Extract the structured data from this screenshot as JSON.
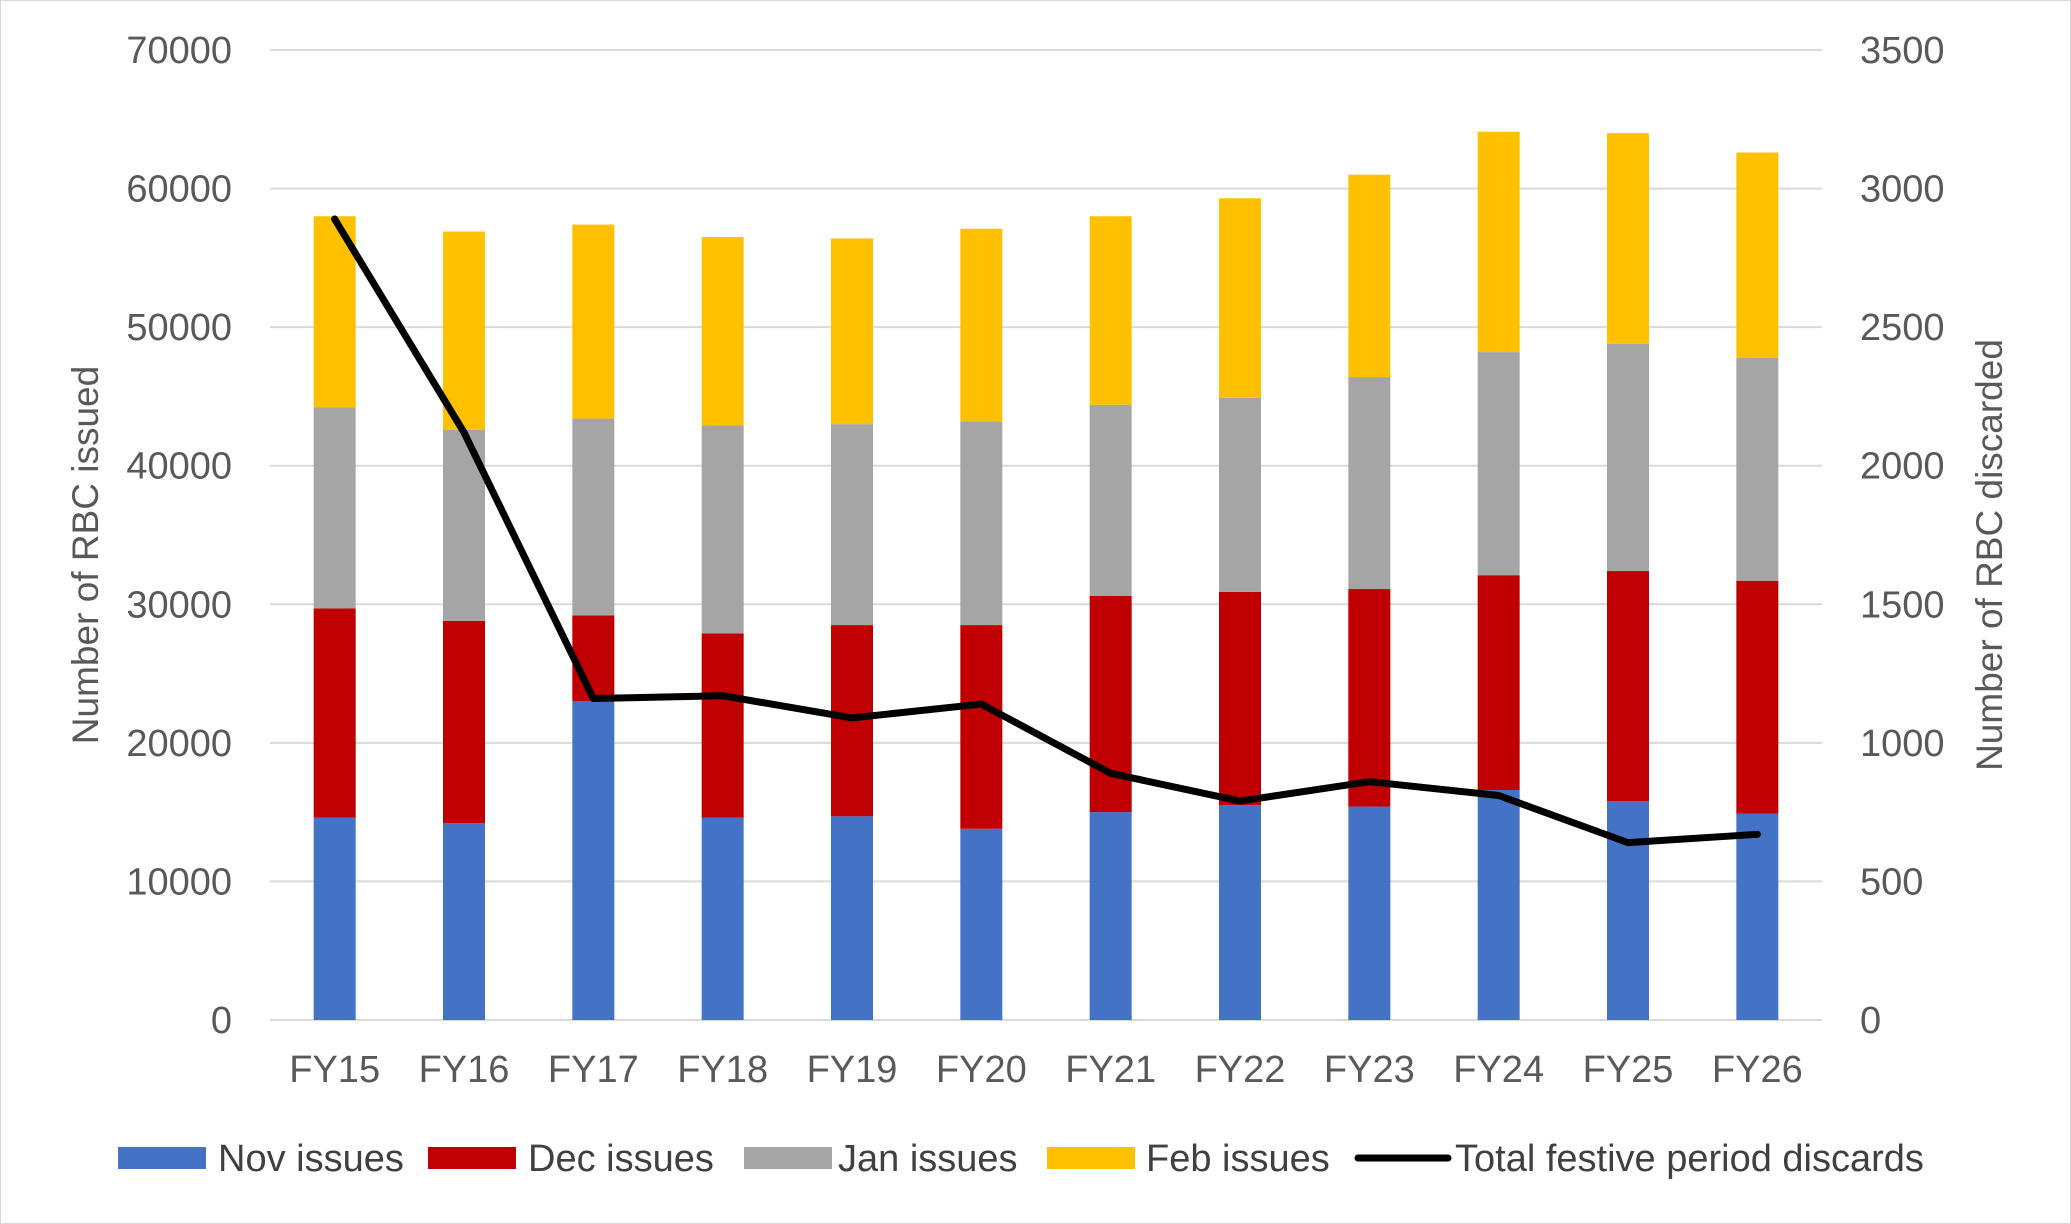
{
  "chart_data": {
    "type": "bar",
    "stacked": true,
    "categories": [
      "FY15",
      "FY16",
      "FY17",
      "FY18",
      "FY19",
      "FY20",
      "FY21",
      "FY22",
      "FY23",
      "FY24",
      "FY25",
      "FY26"
    ],
    "series": [
      {
        "name": "Nov issues",
        "color": "#4472c4",
        "axis": "left",
        "values": [
          14600,
          14200,
          23000,
          14600,
          14700,
          13800,
          15000,
          15500,
          15400,
          16600,
          15800,
          14900
        ]
      },
      {
        "name": "Dec issues",
        "color": "#c00000",
        "axis": "left",
        "values": [
          15100,
          14600,
          6200,
          13300,
          13800,
          14700,
          15600,
          15400,
          15700,
          15500,
          16600,
          16800
        ]
      },
      {
        "name": "Jan issues",
        "color": "#a5a5a5",
        "axis": "left",
        "values": [
          14500,
          13800,
          14200,
          15000,
          14500,
          14700,
          13800,
          14000,
          15300,
          16100,
          16400,
          16100
        ]
      },
      {
        "name": "Feb issues",
        "color": "#ffc000",
        "axis": "left",
        "values": [
          13800,
          14300,
          14000,
          13600,
          13400,
          13900,
          13600,
          14400,
          14600,
          15900,
          15200,
          14800
        ]
      },
      {
        "name": "Total festive period discards",
        "type": "line",
        "color": "#000000",
        "axis": "right",
        "values": [
          2890,
          2120,
          1160,
          1170,
          1090,
          1140,
          890,
          790,
          860,
          810,
          640,
          670
        ]
      }
    ],
    "ylabel": "Number of RBC issued",
    "y2label": "Number of RBC discarded",
    "ylim": [
      0,
      70000
    ],
    "y2lim": [
      0,
      3500
    ],
    "yticks": [
      0,
      10000,
      20000,
      30000,
      40000,
      50000,
      60000,
      70000
    ],
    "y2ticks": [
      0,
      500,
      1000,
      1500,
      2000,
      2500,
      3000,
      3500
    ],
    "grid": "horizontal",
    "legend": "bottom"
  }
}
